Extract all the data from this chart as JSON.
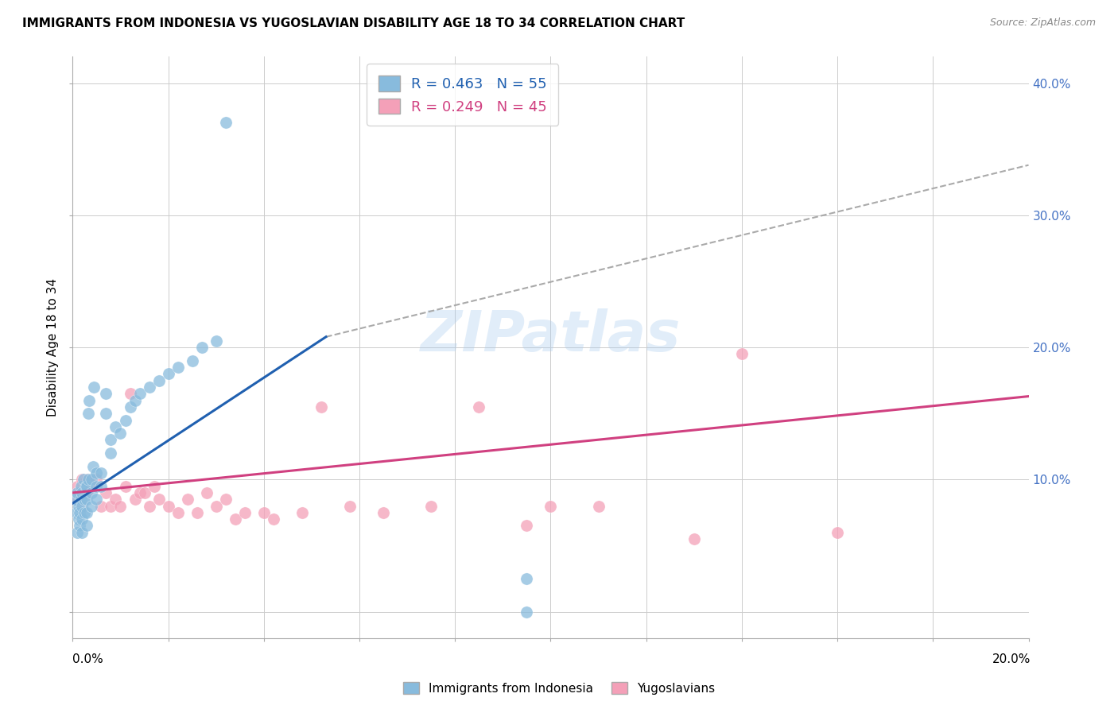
{
  "title": "IMMIGRANTS FROM INDONESIA VS YUGOSLAVIAN DISABILITY AGE 18 TO 34 CORRELATION CHART",
  "source": "Source: ZipAtlas.com",
  "ylabel": "Disability Age 18 to 34",
  "xlim": [
    0.0,
    0.2
  ],
  "ylim": [
    -0.02,
    0.42
  ],
  "legend_R1": "R = 0.463",
  "legend_N1": "N = 55",
  "legend_R2": "R = 0.249",
  "legend_N2": "N = 45",
  "watermark": "ZIPatlas",
  "blue_scatter_color": "#88bbdd",
  "pink_scatter_color": "#f4a0b8",
  "blue_line_color": "#2060b0",
  "pink_line_color": "#d04080",
  "dash_color": "#aaaaaa",
  "indonesia_x": [
    0.0005,
    0.0008,
    0.001,
    0.001,
    0.0012,
    0.0013,
    0.0015,
    0.0015,
    0.0017,
    0.0018,
    0.002,
    0.002,
    0.002,
    0.002,
    0.0022,
    0.0025,
    0.0025,
    0.0028,
    0.003,
    0.003,
    0.003,
    0.003,
    0.0032,
    0.0033,
    0.0035,
    0.004,
    0.004,
    0.004,
    0.0042,
    0.0045,
    0.005,
    0.005,
    0.005,
    0.006,
    0.006,
    0.007,
    0.007,
    0.008,
    0.008,
    0.009,
    0.01,
    0.011,
    0.012,
    0.013,
    0.014,
    0.016,
    0.018,
    0.02,
    0.022,
    0.025,
    0.027,
    0.03,
    0.032,
    0.095,
    0.095
  ],
  "indonesia_y": [
    0.085,
    0.075,
    0.09,
    0.06,
    0.08,
    0.07,
    0.065,
    0.075,
    0.085,
    0.095,
    0.06,
    0.07,
    0.08,
    0.09,
    0.1,
    0.075,
    0.085,
    0.095,
    0.065,
    0.075,
    0.085,
    0.095,
    0.15,
    0.1,
    0.16,
    0.08,
    0.09,
    0.1,
    0.11,
    0.17,
    0.085,
    0.095,
    0.105,
    0.095,
    0.105,
    0.15,
    0.165,
    0.12,
    0.13,
    0.14,
    0.135,
    0.145,
    0.155,
    0.16,
    0.165,
    0.17,
    0.175,
    0.18,
    0.185,
    0.19,
    0.2,
    0.205,
    0.37,
    0.0,
    0.025
  ],
  "yugoslavian_x": [
    0.001,
    0.001,
    0.0015,
    0.002,
    0.002,
    0.003,
    0.003,
    0.004,
    0.005,
    0.006,
    0.007,
    0.008,
    0.009,
    0.01,
    0.011,
    0.012,
    0.013,
    0.014,
    0.015,
    0.016,
    0.017,
    0.018,
    0.02,
    0.022,
    0.024,
    0.026,
    0.028,
    0.03,
    0.032,
    0.034,
    0.036,
    0.04,
    0.042,
    0.048,
    0.052,
    0.058,
    0.065,
    0.075,
    0.085,
    0.095,
    0.1,
    0.11,
    0.13,
    0.14,
    0.16
  ],
  "yugoslavian_y": [
    0.085,
    0.095,
    0.09,
    0.08,
    0.1,
    0.09,
    0.1,
    0.095,
    0.1,
    0.08,
    0.09,
    0.08,
    0.085,
    0.08,
    0.095,
    0.165,
    0.085,
    0.09,
    0.09,
    0.08,
    0.095,
    0.085,
    0.08,
    0.075,
    0.085,
    0.075,
    0.09,
    0.08,
    0.085,
    0.07,
    0.075,
    0.075,
    0.07,
    0.075,
    0.155,
    0.08,
    0.075,
    0.08,
    0.155,
    0.065,
    0.08,
    0.08,
    0.055,
    0.195,
    0.06
  ],
  "blue_line_x": [
    0.0,
    0.053
  ],
  "blue_line_y": [
    0.082,
    0.208
  ],
  "dash_line_x": [
    0.053,
    0.2
  ],
  "dash_line_y": [
    0.208,
    0.338
  ],
  "pink_line_x": [
    0.0,
    0.2
  ],
  "pink_line_y": [
    0.09,
    0.163
  ]
}
